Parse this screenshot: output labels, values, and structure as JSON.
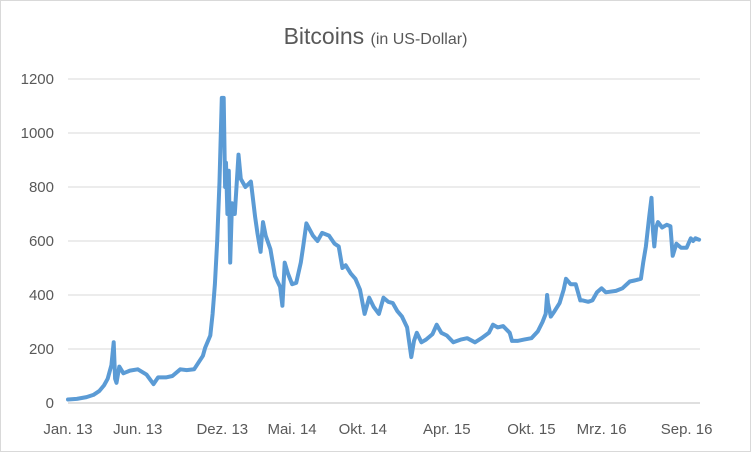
{
  "chart_data": {
    "type": "line",
    "title": "Bitcoins",
    "subtitle": "(in US-Dollar)",
    "xlabel": "",
    "ylabel": "",
    "ylim": [
      0,
      1200
    ],
    "yticks": [
      0,
      200,
      400,
      600,
      800,
      1000,
      1200
    ],
    "xlim": [
      "2013-01-01",
      "2016-09-30"
    ],
    "xticks": [
      {
        "date": "2013-01-01",
        "label": "Jan. 13"
      },
      {
        "date": "2013-06-01",
        "label": "Jun. 13"
      },
      {
        "date": "2013-12-01",
        "label": "Dez. 13"
      },
      {
        "date": "2014-05-01",
        "label": "Mai. 14"
      },
      {
        "date": "2014-10-01",
        "label": "Okt. 14"
      },
      {
        "date": "2015-04-01",
        "label": "Apr. 15"
      },
      {
        "date": "2015-10-01",
        "label": "Okt. 15"
      },
      {
        "date": "2016-03-01",
        "label": "Mrz. 16"
      },
      {
        "date": "2016-09-01",
        "label": "Sep. 16"
      }
    ],
    "grid": true,
    "legend": "none",
    "series": [
      {
        "color": "#5b9bd5",
        "points": [
          [
            "2013-01-01",
            13
          ],
          [
            "2013-01-20",
            15
          ],
          [
            "2013-02-10",
            22
          ],
          [
            "2013-02-25",
            30
          ],
          [
            "2013-03-10",
            45
          ],
          [
            "2013-03-20",
            65
          ],
          [
            "2013-03-28",
            90
          ],
          [
            "2013-04-05",
            140
          ],
          [
            "2013-04-10",
            225
          ],
          [
            "2013-04-13",
            90
          ],
          [
            "2013-04-16",
            75
          ],
          [
            "2013-04-22",
            135
          ],
          [
            "2013-05-01",
            110
          ],
          [
            "2013-05-15",
            120
          ],
          [
            "2013-06-01",
            125
          ],
          [
            "2013-06-20",
            105
          ],
          [
            "2013-07-05",
            70
          ],
          [
            "2013-07-15",
            95
          ],
          [
            "2013-08-01",
            95
          ],
          [
            "2013-08-15",
            100
          ],
          [
            "2013-09-01",
            125
          ],
          [
            "2013-09-15",
            122
          ],
          [
            "2013-10-01",
            125
          ],
          [
            "2013-10-20",
            175
          ],
          [
            "2013-10-25",
            205
          ],
          [
            "2013-11-05",
            250
          ],
          [
            "2013-11-10",
            330
          ],
          [
            "2013-11-15",
            440
          ],
          [
            "2013-11-20",
            600
          ],
          [
            "2013-11-25",
            820
          ],
          [
            "2013-11-30",
            1130
          ],
          [
            "2013-12-04",
            1130
          ],
          [
            "2013-12-07",
            800
          ],
          [
            "2013-12-09",
            890
          ],
          [
            "2013-12-12",
            700
          ],
          [
            "2013-12-15",
            860
          ],
          [
            "2013-12-18",
            520
          ],
          [
            "2013-12-22",
            740
          ],
          [
            "2013-12-28",
            700
          ],
          [
            "2014-01-05",
            920
          ],
          [
            "2014-01-10",
            830
          ],
          [
            "2014-01-20",
            800
          ],
          [
            "2014-02-01",
            820
          ],
          [
            "2014-02-10",
            690
          ],
          [
            "2014-02-15",
            630
          ],
          [
            "2014-02-22",
            560
          ],
          [
            "2014-02-27",
            670
          ],
          [
            "2014-03-05",
            620
          ],
          [
            "2014-03-15",
            570
          ],
          [
            "2014-03-25",
            470
          ],
          [
            "2014-04-05",
            430
          ],
          [
            "2014-04-10",
            360
          ],
          [
            "2014-04-15",
            520
          ],
          [
            "2014-04-22",
            480
          ],
          [
            "2014-05-01",
            440
          ],
          [
            "2014-05-10",
            445
          ],
          [
            "2014-05-20",
            520
          ],
          [
            "2014-05-25",
            580
          ],
          [
            "2014-06-01",
            665
          ],
          [
            "2014-06-15",
            620
          ],
          [
            "2014-06-25",
            600
          ],
          [
            "2014-07-05",
            630
          ],
          [
            "2014-07-20",
            620
          ],
          [
            "2014-08-01",
            590
          ],
          [
            "2014-08-10",
            580
          ],
          [
            "2014-08-18",
            500
          ],
          [
            "2014-08-25",
            510
          ],
          [
            "2014-09-05",
            480
          ],
          [
            "2014-09-15",
            460
          ],
          [
            "2014-09-25",
            420
          ],
          [
            "2014-10-05",
            330
          ],
          [
            "2014-10-15",
            390
          ],
          [
            "2014-10-25",
            355
          ],
          [
            "2014-11-05",
            330
          ],
          [
            "2014-11-15",
            390
          ],
          [
            "2014-11-25",
            375
          ],
          [
            "2014-12-05",
            370
          ],
          [
            "2014-12-15",
            340
          ],
          [
            "2014-12-25",
            320
          ],
          [
            "2015-01-05",
            280
          ],
          [
            "2015-01-14",
            170
          ],
          [
            "2015-01-20",
            230
          ],
          [
            "2015-01-26",
            260
          ],
          [
            "2015-02-05",
            225
          ],
          [
            "2015-02-15",
            235
          ],
          [
            "2015-03-01",
            255
          ],
          [
            "2015-03-10",
            290
          ],
          [
            "2015-03-20",
            260
          ],
          [
            "2015-04-01",
            250
          ],
          [
            "2015-04-15",
            225
          ],
          [
            "2015-05-01",
            235
          ],
          [
            "2015-05-15",
            240
          ],
          [
            "2015-06-01",
            225
          ],
          [
            "2015-06-15",
            240
          ],
          [
            "2015-07-01",
            260
          ],
          [
            "2015-07-10",
            290
          ],
          [
            "2015-07-20",
            280
          ],
          [
            "2015-08-01",
            285
          ],
          [
            "2015-08-15",
            260
          ],
          [
            "2015-08-20",
            230
          ],
          [
            "2015-09-01",
            230
          ],
          [
            "2015-09-15",
            235
          ],
          [
            "2015-10-01",
            240
          ],
          [
            "2015-10-15",
            265
          ],
          [
            "2015-10-25",
            300
          ],
          [
            "2015-11-01",
            330
          ],
          [
            "2015-11-04",
            400
          ],
          [
            "2015-11-06",
            370
          ],
          [
            "2015-11-12",
            320
          ],
          [
            "2015-11-20",
            340
          ],
          [
            "2015-12-01",
            370
          ],
          [
            "2015-12-10",
            420
          ],
          [
            "2015-12-15",
            460
          ],
          [
            "2015-12-25",
            440
          ],
          [
            "2016-01-05",
            440
          ],
          [
            "2016-01-15",
            380
          ],
          [
            "2016-01-20",
            380
          ],
          [
            "2016-02-01",
            375
          ],
          [
            "2016-02-10",
            380
          ],
          [
            "2016-02-20",
            410
          ],
          [
            "2016-03-01",
            425
          ],
          [
            "2016-03-10",
            410
          ],
          [
            "2016-04-01",
            415
          ],
          [
            "2016-04-15",
            425
          ],
          [
            "2016-05-01",
            450
          ],
          [
            "2016-05-15",
            455
          ],
          [
            "2016-05-25",
            460
          ],
          [
            "2016-05-30",
            520
          ],
          [
            "2016-06-05",
            580
          ],
          [
            "2016-06-12",
            690
          ],
          [
            "2016-06-17",
            760
          ],
          [
            "2016-06-20",
            640
          ],
          [
            "2016-06-23",
            580
          ],
          [
            "2016-06-27",
            650
          ],
          [
            "2016-07-01",
            670
          ],
          [
            "2016-07-10",
            650
          ],
          [
            "2016-07-20",
            660
          ],
          [
            "2016-07-28",
            655
          ],
          [
            "2016-08-02",
            545
          ],
          [
            "2016-08-10",
            590
          ],
          [
            "2016-08-20",
            575
          ],
          [
            "2016-09-01",
            575
          ],
          [
            "2016-09-10",
            610
          ],
          [
            "2016-09-15",
            600
          ],
          [
            "2016-09-20",
            610
          ],
          [
            "2016-09-28",
            605
          ]
        ]
      }
    ]
  }
}
